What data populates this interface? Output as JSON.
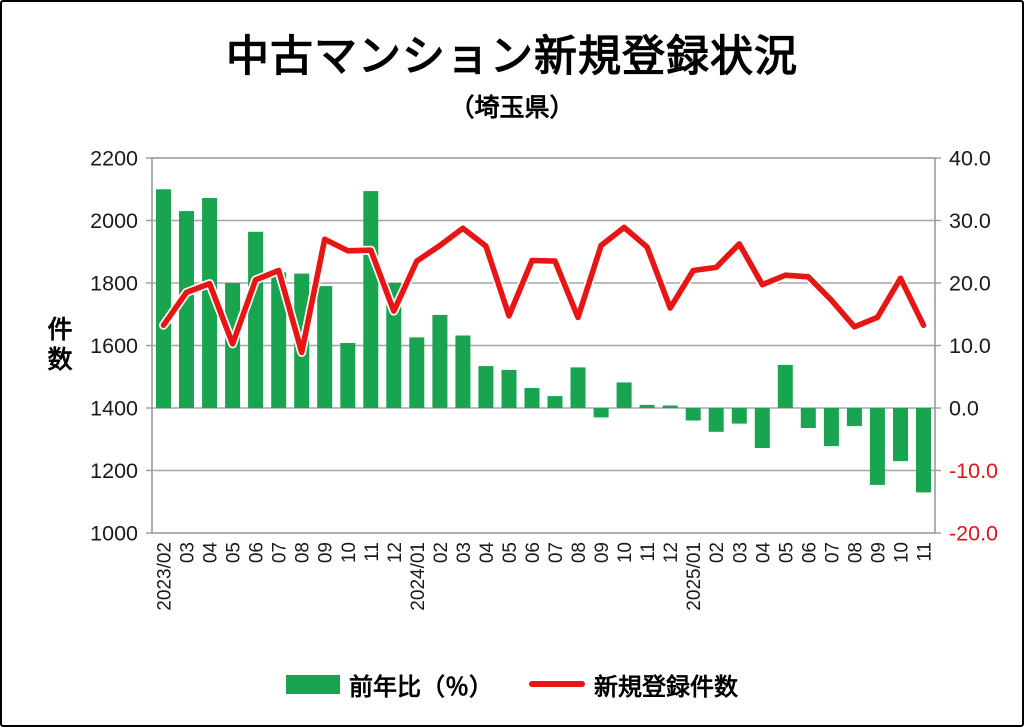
{
  "figure": {
    "title": "中古マンション新規登録状況",
    "subtitle": "（埼玉県）"
  },
  "colors": {
    "bar_green": "#19a450",
    "line_red": "#e81515",
    "negative_label_red": "#e01515",
    "grid_gray": "#a6a6a6",
    "border_gray": "#9b9b9b",
    "text_black": "#1a1a1a"
  },
  "chart_data": {
    "type": "bar+line combo",
    "title": "中古マンション新規登録状況",
    "subtitle": "（埼玉県）",
    "grid": "horizontal",
    "legend_position": "bottom",
    "categories": [
      "2023/02",
      "03",
      "04",
      "05",
      "06",
      "07",
      "08",
      "09",
      "10",
      "11",
      "12",
      "2024/01",
      "02",
      "03",
      "04",
      "05",
      "06",
      "07",
      "08",
      "09",
      "10",
      "11",
      "12",
      "2025/01",
      "02",
      "03",
      "04",
      "05",
      "06",
      "07",
      "08",
      "09",
      "10",
      "11"
    ],
    "series": [
      {
        "name": "前年比（％）",
        "type": "bar",
        "axis": "right",
        "color": "#19a450",
        "values": [
          35.0,
          31.5,
          33.6,
          20.0,
          28.2,
          21.7,
          21.5,
          19.5,
          10.4,
          34.7,
          20.0,
          11.3,
          14.9,
          11.6,
          6.7,
          6.1,
          3.2,
          1.9,
          6.5,
          -1.5,
          4.1,
          0.5,
          0.4,
          -2.0,
          -3.8,
          -2.5,
          -6.4,
          6.9,
          -3.2,
          -6.1,
          -2.9,
          -12.3,
          -8.5,
          -13.5
        ]
      },
      {
        "name": "新規登録件数",
        "type": "line",
        "axis": "left",
        "color": "#e81515",
        "values": [
          1665,
          1770,
          1798,
          1605,
          1810,
          1840,
          1578,
          1940,
          1903,
          1905,
          1710,
          1870,
          1920,
          1975,
          1918,
          1695,
          1872,
          1870,
          1690,
          1920,
          1978,
          1915,
          1720,
          1840,
          1850,
          1925,
          1795,
          1825,
          1820,
          1745,
          1660,
          1690,
          1815,
          1665
        ]
      }
    ],
    "left_axis": {
      "title": "件数",
      "min": 1000,
      "max": 2200,
      "ticks": [
        2200,
        2000,
        1800,
        1600,
        1400,
        1200,
        1000
      ]
    },
    "right_axis": {
      "min": -20,
      "max": 40,
      "ticks": [
        "40.0",
        "30.0",
        "20.0",
        "10.0",
        "0.0",
        "-10.0",
        "-20.0"
      ]
    }
  }
}
